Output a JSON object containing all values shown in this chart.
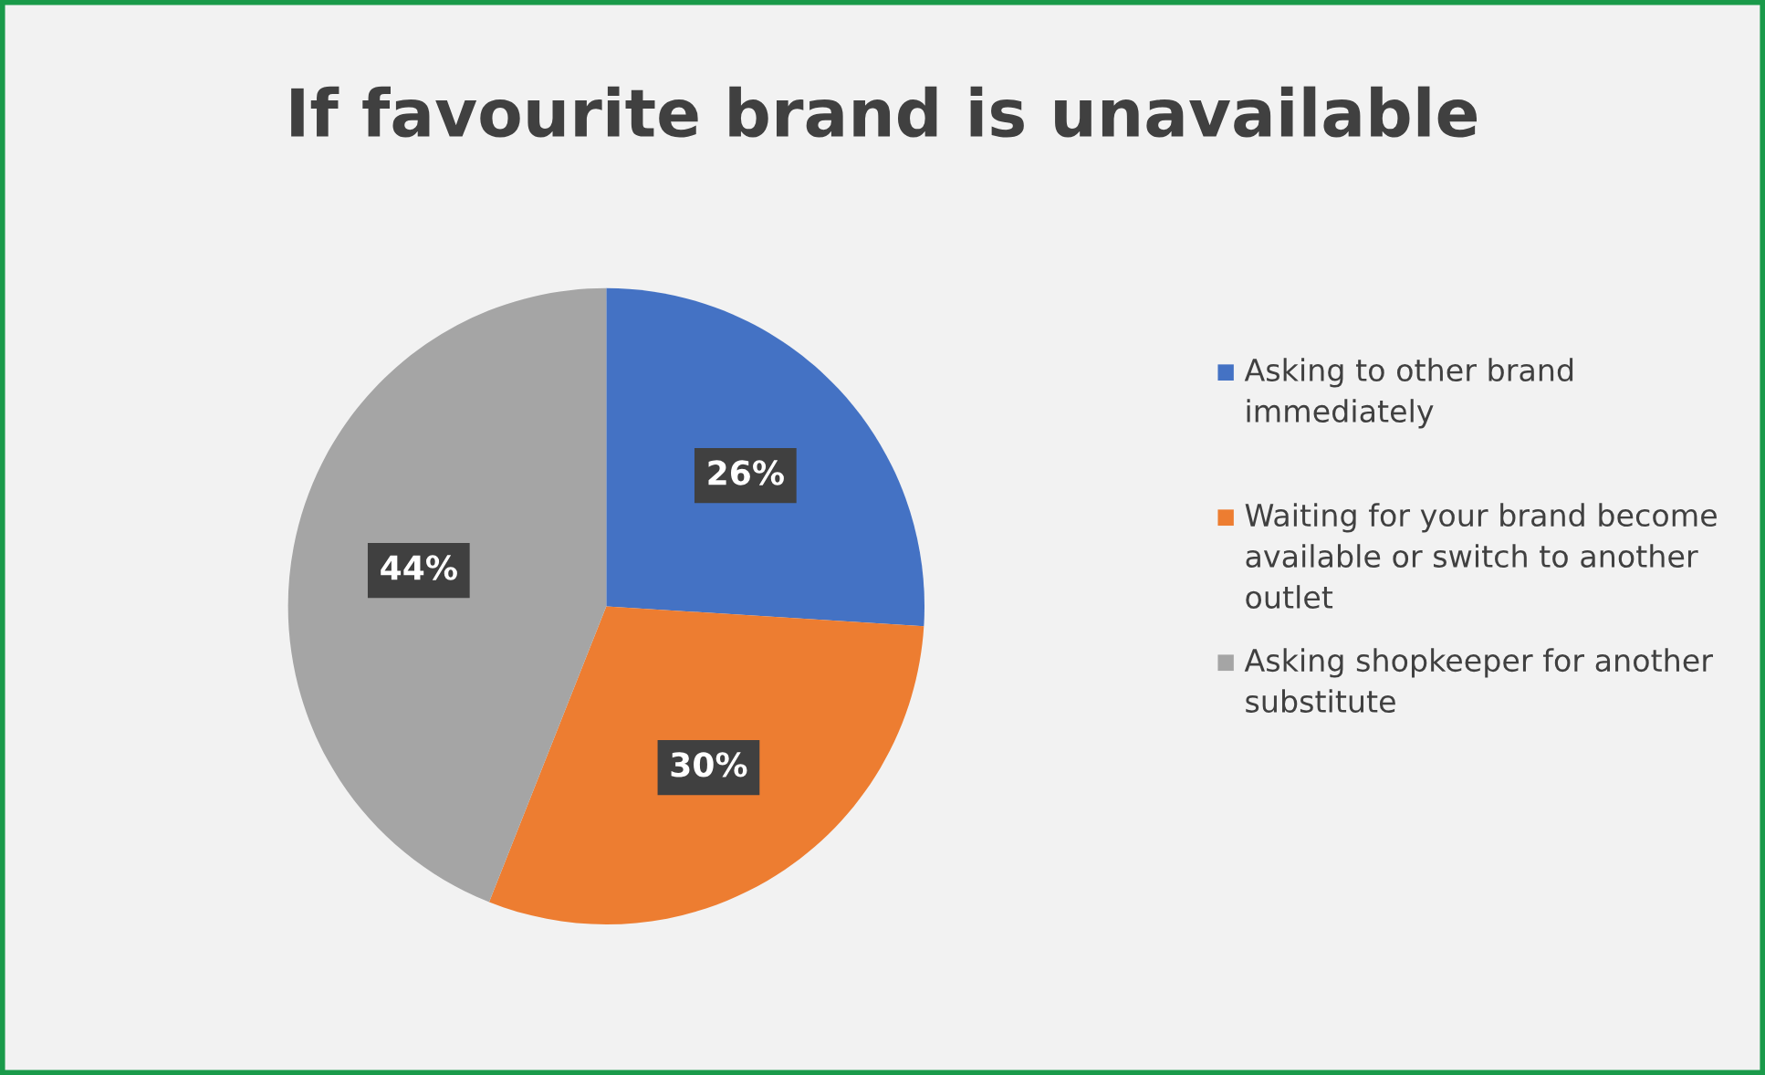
{
  "chart_data": {
    "type": "pie",
    "title": "If favourite brand is unavailable",
    "categories": [
      "Asking to other brand immediately",
      "Waiting for your brand become available or switch to another outlet",
      "Asking shopkeeper for another substitute"
    ],
    "values": [
      26,
      30,
      44
    ],
    "colors": [
      "#4472c4",
      "#ed7d31",
      "#a5a5a5"
    ],
    "value_labels": [
      "26%",
      "30%",
      "44%"
    ],
    "legend": "right"
  }
}
